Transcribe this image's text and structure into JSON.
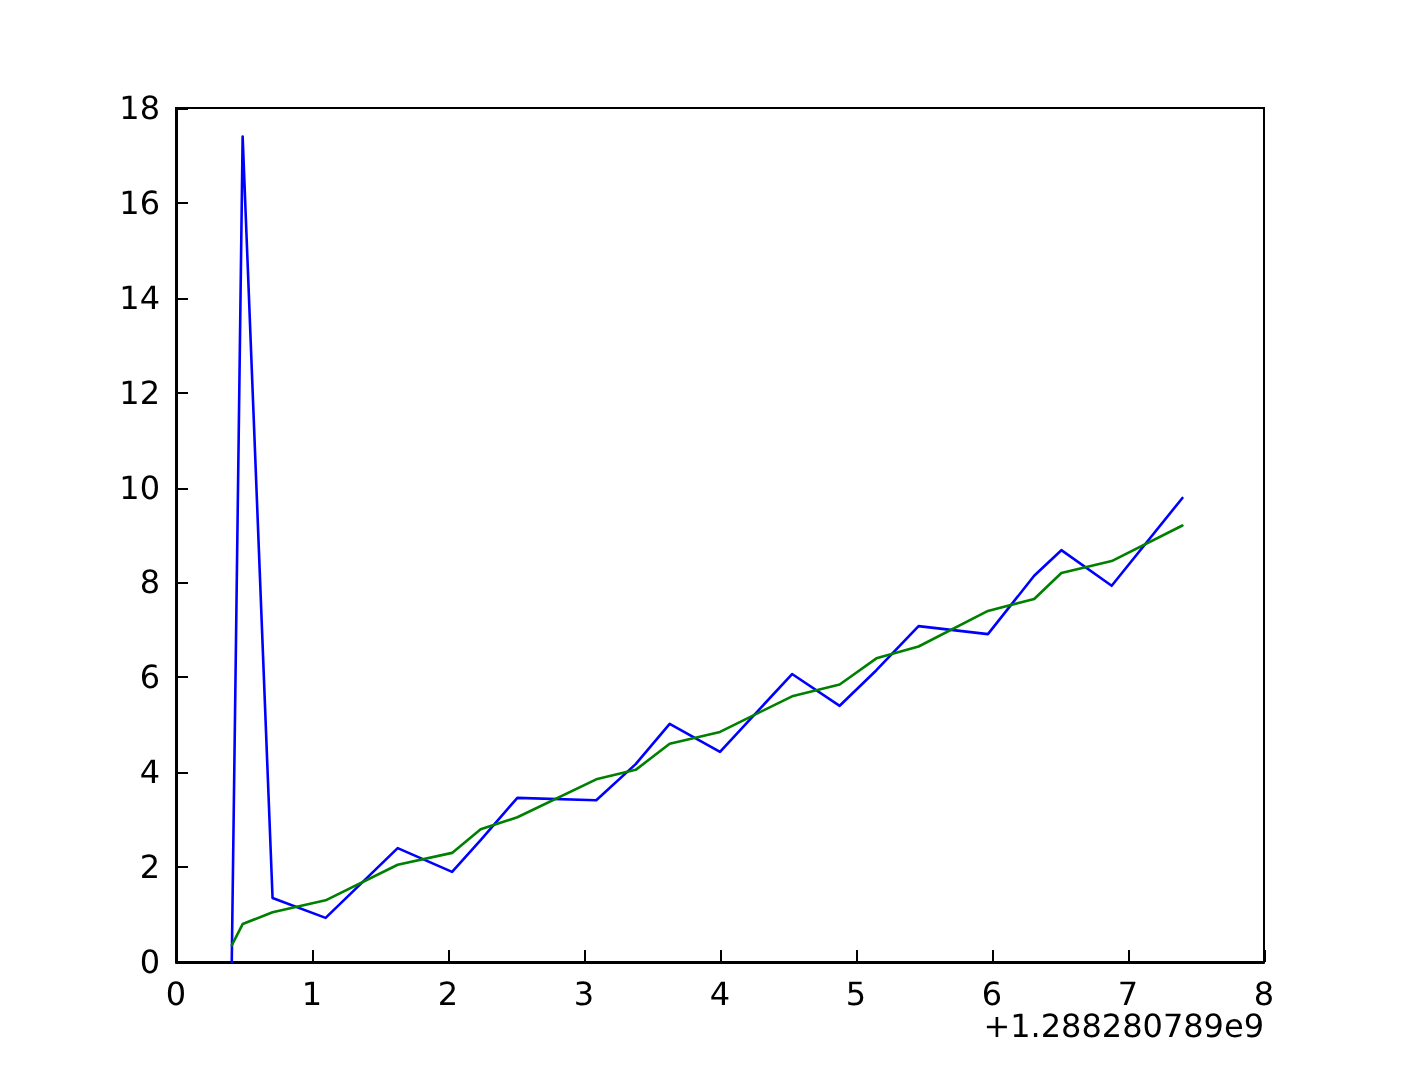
{
  "chart_data": {
    "type": "line",
    "xlabel": "+1.288280789e9",
    "x": [
      0.41,
      0.49,
      0.71,
      1.1,
      1.63,
      2.03,
      2.24,
      2.51,
      3.09,
      3.38,
      3.63,
      4.0,
      4.53,
      4.88,
      5.15,
      5.46,
      5.97,
      6.31,
      6.51,
      6.88,
      7.4
    ],
    "series": [
      {
        "color": "#0000ff",
        "values": [
          0,
          17.4,
          1.35,
          0.93,
          2.4,
          1.9,
          2.57,
          3.46,
          3.41,
          4.17,
          5.02,
          4.43,
          6.07,
          5.4,
          6.15,
          7.08,
          6.91,
          8.14,
          8.68,
          7.93,
          9.78
        ]
      },
      {
        "color": "#008000",
        "values": [
          0.35,
          0.8,
          1.05,
          1.3,
          2.05,
          2.3,
          2.8,
          3.05,
          3.85,
          4.05,
          4.6,
          4.85,
          5.6,
          5.85,
          6.4,
          6.65,
          7.4,
          7.65,
          8.2,
          8.45,
          9.2
        ]
      }
    ],
    "xlim": [
      0,
      8
    ],
    "xticks": [
      0,
      1,
      2,
      3,
      4,
      5,
      6,
      7,
      8
    ],
    "ylim": [
      0,
      18
    ],
    "yticks": [
      0,
      2,
      4,
      6,
      8,
      10,
      12,
      14,
      16,
      18
    ],
    "grid": false,
    "marker": "none",
    "line_style": "solid"
  }
}
